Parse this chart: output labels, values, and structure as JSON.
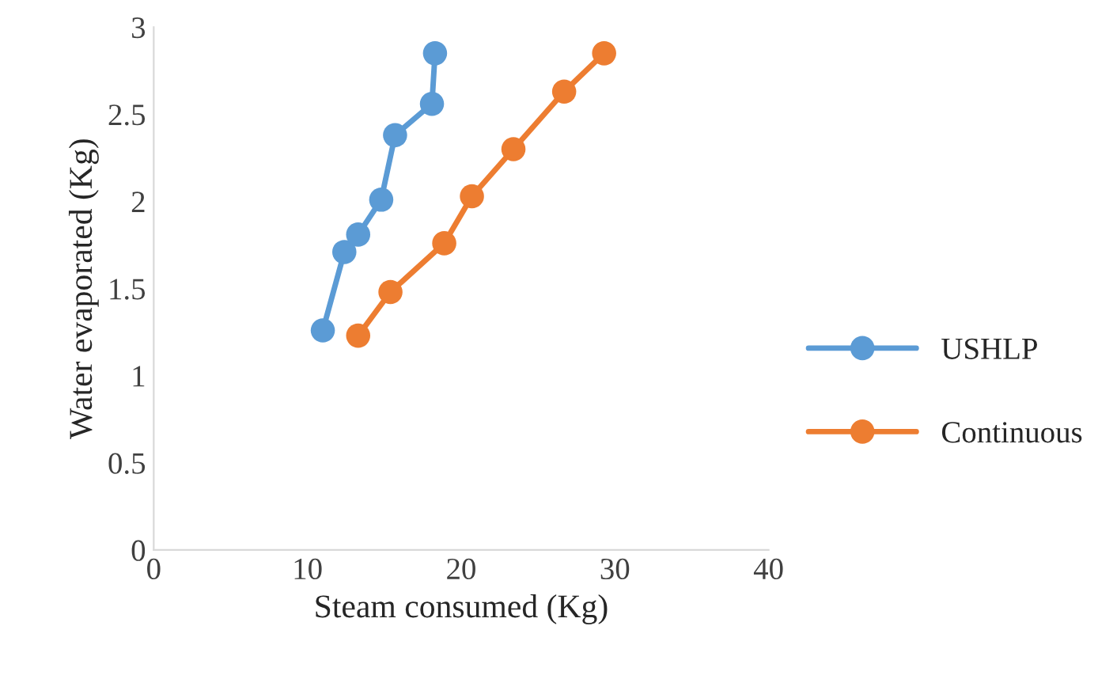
{
  "chart_data": {
    "type": "line",
    "xlabel": "Steam consumed (Kg)",
    "ylabel": "Water evaporated (Kg)",
    "xlim": [
      0,
      40
    ],
    "xticks": [
      0,
      10,
      20,
      30,
      40
    ],
    "ylim": [
      0,
      3
    ],
    "yticks": [
      0,
      0.5,
      1,
      1.5,
      2,
      2.5,
      3
    ],
    "grid": false,
    "legend": "right",
    "marker": "circle",
    "line_style": "solid",
    "series": [
      {
        "name": "USHLP",
        "color": "#5b9bd5",
        "x": [
          11.0,
          12.4,
          13.3,
          14.8,
          15.7,
          18.1,
          18.3
        ],
        "values": [
          1.26,
          1.71,
          1.81,
          2.01,
          2.38,
          2.56,
          2.85
        ]
      },
      {
        "name": "Continuous",
        "color": "#ed7d31",
        "x": [
          13.3,
          15.4,
          18.9,
          20.7,
          23.4,
          26.7,
          29.3
        ],
        "values": [
          1.23,
          1.48,
          1.76,
          2.03,
          2.3,
          2.63,
          2.85
        ]
      }
    ]
  }
}
